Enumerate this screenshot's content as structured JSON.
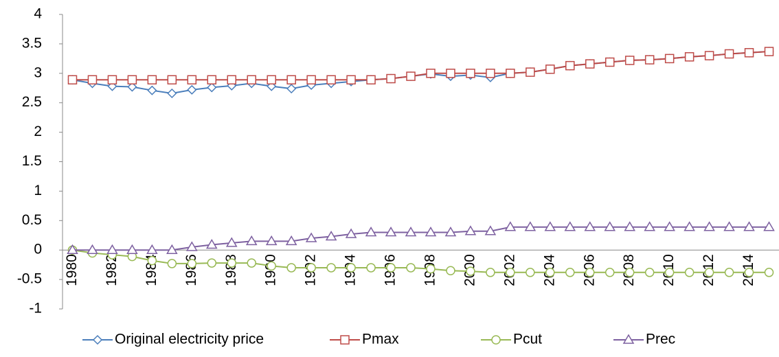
{
  "chart_data": {
    "type": "line",
    "categories": [
      "1980",
      null,
      "1982",
      null,
      "1984",
      null,
      "1986",
      null,
      "1988",
      null,
      "1990",
      null,
      "1992",
      null,
      "1994",
      null,
      "1996",
      null,
      "1998",
      null,
      "2000",
      null,
      "2002",
      null,
      "2004",
      null,
      "2006",
      null,
      "2008",
      null,
      "2010",
      null,
      "2012",
      null,
      "2014",
      null
    ],
    "series": [
      {
        "name": "Original electricity price",
        "color": "#4a7ebb",
        "marker": "diamond",
        "values": [
          2.89,
          2.83,
          2.78,
          2.77,
          2.71,
          2.66,
          2.72,
          2.76,
          2.79,
          2.83,
          2.78,
          2.74,
          2.8,
          2.83,
          2.86,
          2.89,
          2.91,
          2.95,
          2.99,
          2.95,
          2.97,
          2.93,
          3.0,
          3.02,
          3.07,
          3.13,
          3.16,
          3.19,
          3.22,
          3.23,
          3.25,
          3.28,
          3.3,
          3.33,
          3.35,
          3.37
        ]
      },
      {
        "name": "Pmax",
        "color": "#be4b48",
        "marker": "square",
        "values": [
          2.89,
          2.89,
          2.89,
          2.89,
          2.89,
          2.89,
          2.89,
          2.89,
          2.89,
          2.89,
          2.89,
          2.89,
          2.89,
          2.89,
          2.89,
          2.89,
          2.91,
          2.95,
          3.0,
          3.0,
          3.0,
          3.0,
          3.0,
          3.02,
          3.07,
          3.13,
          3.16,
          3.19,
          3.22,
          3.23,
          3.25,
          3.28,
          3.3,
          3.33,
          3.35,
          3.37
        ]
      },
      {
        "name": "Pcut",
        "color": "#98b954",
        "marker": "circle",
        "values": [
          0,
          -0.05,
          -0.08,
          -0.11,
          -0.18,
          -0.23,
          -0.23,
          -0.22,
          -0.22,
          -0.22,
          -0.27,
          -0.3,
          -0.3,
          -0.3,
          -0.3,
          -0.3,
          -0.3,
          -0.3,
          -0.32,
          -0.35,
          -0.36,
          -0.38,
          -0.38,
          -0.38,
          -0.38,
          -0.38,
          -0.38,
          -0.38,
          -0.38,
          -0.38,
          -0.38,
          -0.38,
          -0.38,
          -0.38,
          -0.38,
          -0.38
        ]
      },
      {
        "name": "Prec",
        "color": "#7d60a0",
        "marker": "triangle",
        "values": [
          0,
          0,
          0,
          0,
          0,
          0,
          0.05,
          0.09,
          0.12,
          0.15,
          0.15,
          0.15,
          0.2,
          0.23,
          0.27,
          0.3,
          0.3,
          0.3,
          0.3,
          0.3,
          0.32,
          0.32,
          0.39,
          0.39,
          0.39,
          0.39,
          0.39,
          0.39,
          0.39,
          0.39,
          0.39,
          0.39,
          0.39,
          0.39,
          0.39,
          0.39
        ]
      }
    ],
    "ylim": [
      -1,
      4
    ],
    "yticks": [
      -1,
      -0.5,
      0,
      0.5,
      1,
      1.5,
      2,
      2.5,
      3,
      3.5,
      4
    ],
    "grid": false,
    "legend": "bottom"
  }
}
